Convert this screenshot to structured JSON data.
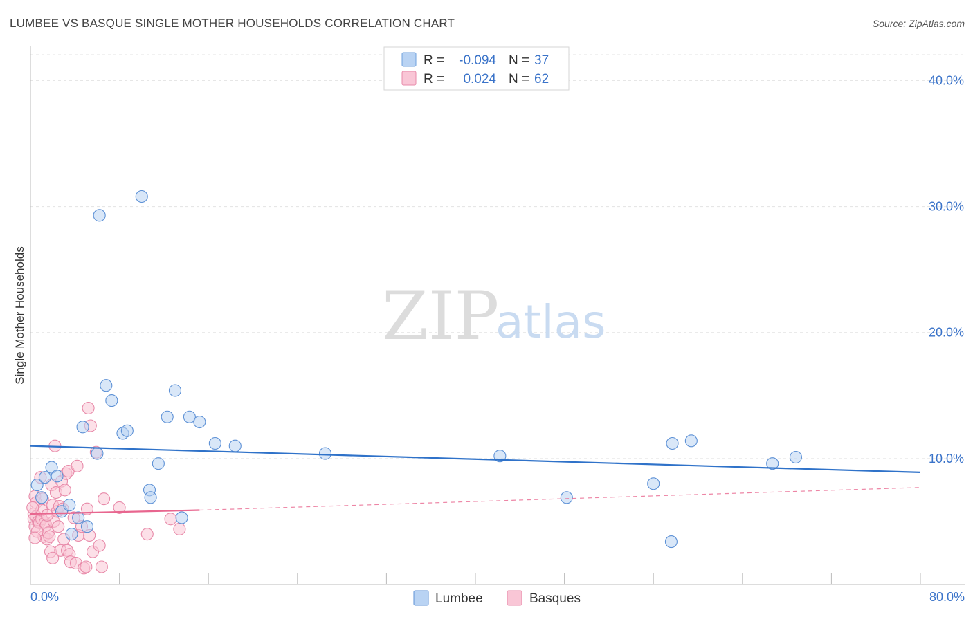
{
  "chart_data": {
    "type": "scatter",
    "title": "LUMBEE VS BASQUE SINGLE MOTHER HOUSEHOLDS CORRELATION CHART",
    "source": "Source: ZipAtlas.com",
    "ylabel": "Single Mother Households",
    "xlim": [
      0,
      80
    ],
    "ylim": [
      0,
      42
    ],
    "x_tick_labels": [
      "0.0%",
      "80.0%"
    ],
    "y_ticks": [
      10,
      20,
      30,
      40
    ],
    "y_tick_labels": [
      "10.0%",
      "20.0%",
      "30.0%",
      "40.0%"
    ],
    "grid": true,
    "watermark": {
      "zip": "ZIP",
      "atlas": "atlas"
    },
    "legend_box": {
      "rows": [
        {
          "r_label": "R =",
          "r_value": "-0.094",
          "n_label": "N =",
          "n_value": "37",
          "color": "#b9d3f3",
          "edge": "#6fa0dc"
        },
        {
          "r_label": "R =",
          "r_value": "0.024",
          "n_label": "N =",
          "n_value": "62",
          "color": "#f9c6d6",
          "edge": "#e88aa9"
        }
      ]
    },
    "series": [
      {
        "name": "Lumbee",
        "color": "#b9d3f3",
        "edge": "#5d91d6",
        "line_color": "#2f72c9",
        "trend": {
          "x": [
            0,
            80
          ],
          "y": [
            11.0,
            8.9
          ]
        },
        "points": [
          [
            0.6,
            7.9
          ],
          [
            1.0,
            6.9
          ],
          [
            1.3,
            8.5
          ],
          [
            1.9,
            9.3
          ],
          [
            2.4,
            8.6
          ],
          [
            2.8,
            5.8
          ],
          [
            3.5,
            6.3
          ],
          [
            3.7,
            4.0
          ],
          [
            4.3,
            5.3
          ],
          [
            4.7,
            12.5
          ],
          [
            5.1,
            4.6
          ],
          [
            6.0,
            10.4
          ],
          [
            6.2,
            29.3
          ],
          [
            6.8,
            15.8
          ],
          [
            7.3,
            14.6
          ],
          [
            8.3,
            12.0
          ],
          [
            8.7,
            12.2
          ],
          [
            10.0,
            30.8
          ],
          [
            10.7,
            7.5
          ],
          [
            10.8,
            6.9
          ],
          [
            11.5,
            9.6
          ],
          [
            12.3,
            13.3
          ],
          [
            13.0,
            15.4
          ],
          [
            13.6,
            5.3
          ],
          [
            14.3,
            13.3
          ],
          [
            15.2,
            12.9
          ],
          [
            16.6,
            11.2
          ],
          [
            18.4,
            11.0
          ],
          [
            26.5,
            10.4
          ],
          [
            42.2,
            10.2
          ],
          [
            48.2,
            6.9
          ],
          [
            56.0,
            8.0
          ],
          [
            57.6,
            3.4
          ],
          [
            57.7,
            11.2
          ],
          [
            59.4,
            11.4
          ],
          [
            66.7,
            9.6
          ],
          [
            68.8,
            10.1
          ]
        ]
      },
      {
        "name": "Basques",
        "color": "#f9c6d6",
        "edge": "#e88aa9",
        "line_color": "#e8668f",
        "trend": {
          "x": [
            0,
            15.2
          ],
          "y": [
            5.6,
            5.9
          ]
        },
        "trend_ext": {
          "x": [
            15.2,
            80
          ],
          "y": [
            5.9,
            7.7
          ]
        },
        "points": [
          [
            0.3,
            5.6
          ],
          [
            0.3,
            5.2
          ],
          [
            0.4,
            7.0
          ],
          [
            0.4,
            4.6
          ],
          [
            0.5,
            6.5
          ],
          [
            0.5,
            5.4
          ],
          [
            0.7,
            5.0
          ],
          [
            0.8,
            4.9
          ],
          [
            0.9,
            8.5
          ],
          [
            1.0,
            5.2
          ],
          [
            1.1,
            6.8
          ],
          [
            1.2,
            3.8
          ],
          [
            1.3,
            4.9
          ],
          [
            1.4,
            4.7
          ],
          [
            1.5,
            3.6
          ],
          [
            1.6,
            4.1
          ],
          [
            1.7,
            3.8
          ],
          [
            1.8,
            2.6
          ],
          [
            1.9,
            7.9
          ],
          [
            2.0,
            6.3
          ],
          [
            2.1,
            5.0
          ],
          [
            2.2,
            11.0
          ],
          [
            2.3,
            7.3
          ],
          [
            2.4,
            5.8
          ],
          [
            2.5,
            4.6
          ],
          [
            2.6,
            6.2
          ],
          [
            2.7,
            2.7
          ],
          [
            2.8,
            8.2
          ],
          [
            2.9,
            6.0
          ],
          [
            3.0,
            3.6
          ],
          [
            3.1,
            7.5
          ],
          [
            3.2,
            8.8
          ],
          [
            3.3,
            2.7
          ],
          [
            3.4,
            9.0
          ],
          [
            3.5,
            2.4
          ],
          [
            3.6,
            1.8
          ],
          [
            3.9,
            5.3
          ],
          [
            4.1,
            1.7
          ],
          [
            4.2,
            9.4
          ],
          [
            4.3,
            3.9
          ],
          [
            4.6,
            4.6
          ],
          [
            4.8,
            1.3
          ],
          [
            5.0,
            1.4
          ],
          [
            5.1,
            6.0
          ],
          [
            5.2,
            14.0
          ],
          [
            5.3,
            3.9
          ],
          [
            5.4,
            12.6
          ],
          [
            5.6,
            2.6
          ],
          [
            5.9,
            10.5
          ],
          [
            6.2,
            3.1
          ],
          [
            6.4,
            1.4
          ],
          [
            6.6,
            6.8
          ],
          [
            8.0,
            6.1
          ],
          [
            10.5,
            4.0
          ],
          [
            12.6,
            5.2
          ],
          [
            13.4,
            4.4
          ],
          [
            0.6,
            4.2
          ],
          [
            1.0,
            5.9
          ],
          [
            0.4,
            3.7
          ],
          [
            2.0,
            2.1
          ],
          [
            1.5,
            5.5
          ],
          [
            0.2,
            6.1
          ]
        ]
      }
    ],
    "bottom_legend": [
      "Lumbee",
      "Basques"
    ]
  }
}
